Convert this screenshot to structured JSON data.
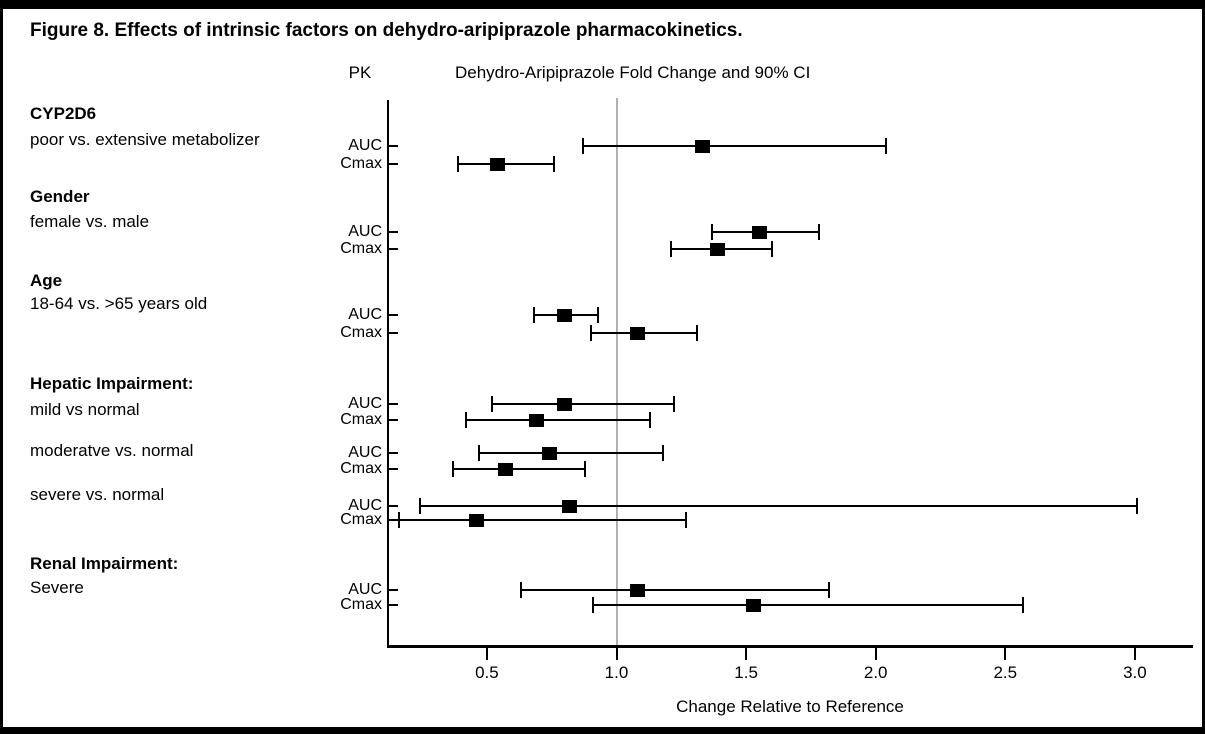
{
  "figure": {
    "title": "Figure 8. Effects of intrinsic factors on dehydro-aripiprazole pharmacokinetics.",
    "pk_header": "PK",
    "ci_header": "Dehydro-Aripiprazole Fold Change and 90% CI",
    "xlabel": "Change Relative to Reference"
  },
  "colors": {
    "marker": "#000000",
    "ci_line": "#000000",
    "reference_line": "#b0b0b0",
    "border": "#000000",
    "background": "#ffffff"
  },
  "chart_data": {
    "type": "scatter",
    "variant": "forest-plot",
    "title": "Figure 8. Effects of intrinsic factors on dehydro-aripiprazole pharmacokinetics.",
    "subtitle": "Dehydro-Aripiprazole Fold Change and 90% CI",
    "xlabel": "Change Relative to Reference",
    "x_axis": {
      "range": [
        0.11,
        3.21
      ],
      "ticks": [
        {
          "value": 0.5,
          "label": "0.5"
        },
        {
          "value": 1.0,
          "label": "1.0"
        },
        {
          "value": 1.5,
          "label": "1.5"
        },
        {
          "value": 2.0,
          "label": "2.0"
        },
        {
          "value": 2.5,
          "label": "2.5"
        },
        {
          "value": 3.0,
          "label": "3.0"
        }
      ],
      "reference_line": 1.0,
      "grid": false
    },
    "legend": null,
    "groups": [
      {
        "name": "CYP2D6",
        "comparison": "poor vs. extensive metabolizer",
        "rows": [
          {
            "pk": "AUC",
            "estimate": 1.33,
            "ci_low": 0.87,
            "ci_high": 2.04
          },
          {
            "pk": "Cmax",
            "estimate": 0.54,
            "ci_low": 0.39,
            "ci_high": 0.76
          }
        ]
      },
      {
        "name": "Gender",
        "comparison": "female vs. male",
        "rows": [
          {
            "pk": "AUC",
            "estimate": 1.55,
            "ci_low": 1.37,
            "ci_high": 1.78
          },
          {
            "pk": "Cmax",
            "estimate": 1.39,
            "ci_low": 1.21,
            "ci_high": 1.6
          }
        ]
      },
      {
        "name": "Age",
        "comparison": "18-64 vs. >65 years old",
        "rows": [
          {
            "pk": "AUC",
            "estimate": 0.8,
            "ci_low": 0.68,
            "ci_high": 0.93
          },
          {
            "pk": "Cmax",
            "estimate": 1.08,
            "ci_low": 0.9,
            "ci_high": 1.31
          }
        ]
      },
      {
        "name": "Hepatic Impairment:",
        "comparison": "mild vs normal",
        "rows": [
          {
            "pk": "AUC",
            "estimate": 0.8,
            "ci_low": 0.52,
            "ci_high": 1.22
          },
          {
            "pk": "Cmax",
            "estimate": 0.69,
            "ci_low": 0.42,
            "ci_high": 1.13
          }
        ]
      },
      {
        "name": null,
        "comparison": "moderatve vs. normal",
        "rows": [
          {
            "pk": "AUC",
            "estimate": 0.74,
            "ci_low": 0.47,
            "ci_high": 1.18
          },
          {
            "pk": "Cmax",
            "estimate": 0.57,
            "ci_low": 0.37,
            "ci_high": 0.88
          }
        ]
      },
      {
        "name": null,
        "comparison": "severe vs. normal",
        "rows": [
          {
            "pk": "AUC",
            "estimate": 0.82,
            "ci_low": 0.24,
            "ci_high": 3.01
          },
          {
            "pk": "Cmax",
            "estimate": 0.46,
            "ci_low": 0.16,
            "ci_high": 1.27
          }
        ]
      },
      {
        "name": "Renal Impairment:",
        "comparison": "Severe",
        "rows": [
          {
            "pk": "AUC",
            "estimate": 1.08,
            "ci_low": 0.63,
            "ci_high": 1.82
          },
          {
            "pk": "Cmax",
            "estimate": 1.53,
            "ci_low": 0.91,
            "ci_high": 2.57
          }
        ]
      }
    ]
  }
}
